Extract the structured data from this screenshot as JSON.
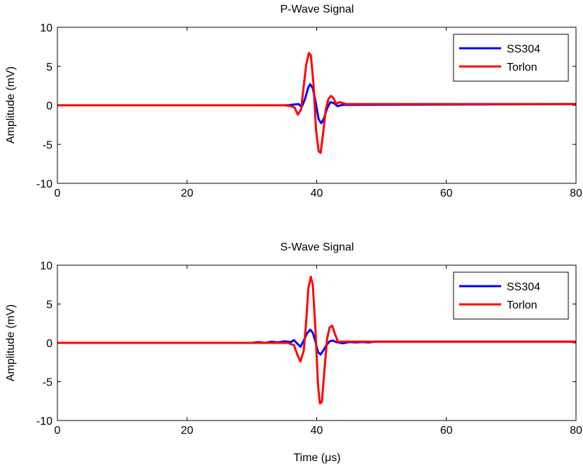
{
  "colors": {
    "SS304": "#0000ff",
    "Torlon": "#ff0000",
    "axis": "#000000"
  },
  "chart_data": [
    {
      "type": "line",
      "title": "P-Wave Signal",
      "xlabel": "",
      "ylabel": "Amplitude (mV)",
      "xlim": [
        0,
        80
      ],
      "ylim": [
        -10,
        10
      ],
      "xticks": [
        0,
        20,
        40,
        60,
        80
      ],
      "yticks": [
        10,
        5,
        0,
        -5,
        -10
      ],
      "xtick_labels": [
        "0",
        "20",
        "40",
        "60",
        "80"
      ],
      "ytick_labels": [
        "10",
        "5",
        "0",
        "-5",
        "-10"
      ],
      "grid": false,
      "legend_position": "top-right",
      "series": [
        {
          "name": "SS304",
          "color": "#0000ff",
          "x": [
            0,
            35.5,
            36.5,
            37.2,
            37.7,
            38.2,
            38.7,
            39.0,
            39.4,
            39.8,
            40.3,
            40.7,
            41.1,
            41.6,
            42.1,
            42.6,
            43.2,
            44.0,
            80
          ],
          "y": [
            0,
            0,
            0.1,
            0.15,
            -0.2,
            0.8,
            2.3,
            2.7,
            2.2,
            0.6,
            -1.8,
            -2.3,
            -1.7,
            -0.4,
            0.4,
            0.3,
            -0.1,
            0.05,
            0.15
          ]
        },
        {
          "name": "Torlon",
          "color": "#ff0000",
          "x": [
            0,
            35.0,
            36.0,
            36.6,
            37.1,
            37.6,
            38.0,
            38.4,
            38.8,
            39.1,
            39.5,
            39.9,
            40.3,
            40.6,
            41.0,
            41.4,
            41.8,
            42.2,
            42.6,
            43.0,
            43.5,
            44.0,
            44.5,
            80
          ],
          "y": [
            0,
            0,
            -0.1,
            -0.3,
            -1.2,
            -0.5,
            2.5,
            5.3,
            6.7,
            6.4,
            2.8,
            -3.2,
            -5.9,
            -6.1,
            -3.5,
            -0.5,
            0.8,
            1.2,
            0.9,
            0.2,
            0.4,
            0.3,
            0.15,
            0.15
          ]
        }
      ]
    },
    {
      "type": "line",
      "title": "S-Wave Signal",
      "xlabel": "Time (μs)",
      "ylabel": "Amplitude (mV)",
      "xlim": [
        0,
        80
      ],
      "ylim": [
        -10,
        10
      ],
      "xticks": [
        0,
        20,
        40,
        60,
        80
      ],
      "yticks": [
        10,
        5,
        0,
        -5,
        -10
      ],
      "xtick_labels": [
        "0",
        "20",
        "40",
        "60",
        "80"
      ],
      "ytick_labels": [
        "10",
        "5",
        "0",
        "-5",
        "-10"
      ],
      "grid": false,
      "legend_position": "top-right",
      "series": [
        {
          "name": "SS304",
          "color": "#0000ff",
          "x": [
            0,
            30.0,
            31.0,
            32.0,
            33.0,
            34.0,
            35.0,
            36.0,
            36.5,
            37.0,
            37.5,
            38.0,
            38.5,
            39.0,
            39.4,
            39.8,
            40.2,
            40.6,
            41.0,
            41.5,
            42.0,
            42.5,
            43.0,
            44.0,
            45.0,
            46.0,
            47.0,
            48.0,
            49.0,
            80
          ],
          "y": [
            0,
            0,
            0.1,
            0,
            0.15,
            0.05,
            0.2,
            0.1,
            0.35,
            -0.1,
            -0.5,
            0.3,
            1.2,
            1.7,
            1.3,
            0.2,
            -1.2,
            -1.5,
            -1.0,
            -0.3,
            0.2,
            0.3,
            0.1,
            -0.05,
            0.1,
            0.05,
            0.1,
            0.05,
            0.15,
            0.15
          ]
        },
        {
          "name": "Torlon",
          "color": "#ff0000",
          "x": [
            0,
            35.5,
            36.5,
            37.0,
            37.5,
            38.0,
            38.4,
            38.7,
            39.1,
            39.4,
            39.8,
            40.2,
            40.5,
            40.8,
            41.2,
            41.6,
            42.0,
            42.4,
            42.8,
            43.3,
            43.8,
            80
          ],
          "y": [
            0,
            0,
            -0.3,
            -1.5,
            -2.4,
            -1.0,
            3.0,
            7.0,
            8.5,
            7.5,
            2.0,
            -5.5,
            -7.8,
            -7.6,
            -3.5,
            0.5,
            2.0,
            2.2,
            1.2,
            0.1,
            0.15,
            0.15
          ]
        }
      ]
    }
  ]
}
